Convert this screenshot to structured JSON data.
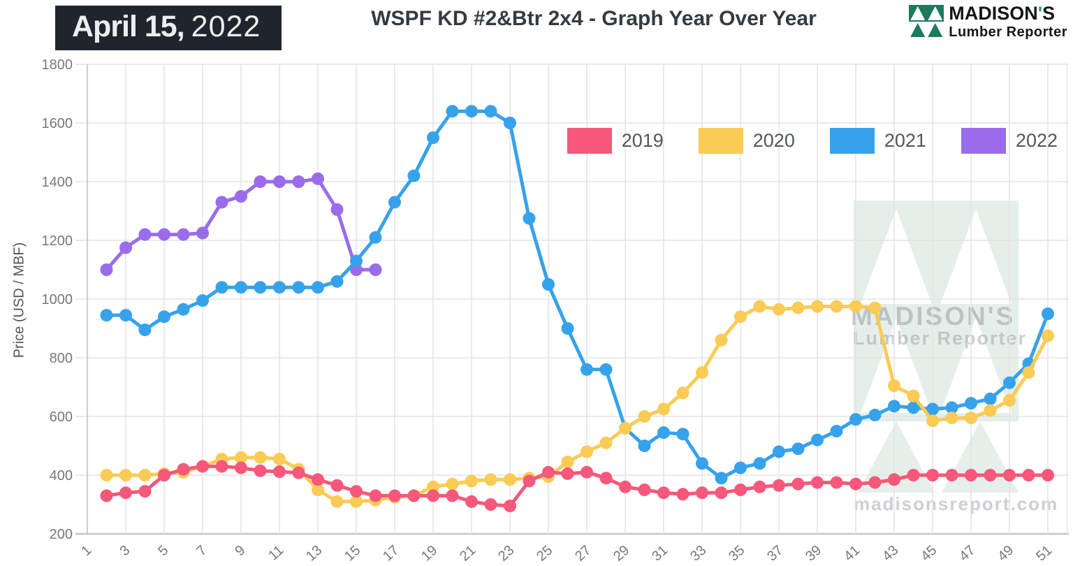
{
  "header": {
    "date_badge": {
      "bold": "April 15,",
      "light": "2022"
    },
    "title": "WSPF KD #2&Btr 2x4 - Graph Year Over Year",
    "logo": {
      "name_pre": "MADISON",
      "apostrophe": "'",
      "name_post": "S",
      "tagline": "Lumber Reporter"
    }
  },
  "watermark": {
    "line1": "MADISON'S",
    "line2": "Lumber Reporter",
    "url": "madisonsreport.com"
  },
  "chart_data": {
    "type": "line",
    "title": "WSPF KD #2&Btr 2x4 - Graph Year Over Year",
    "xlabel": "",
    "ylabel": "Price (USD / MBF)",
    "x_axis": {
      "min": 1,
      "max": 52,
      "ticks": [
        1,
        3,
        5,
        7,
        9,
        11,
        13,
        15,
        17,
        19,
        21,
        23,
        25,
        27,
        29,
        31,
        33,
        35,
        37,
        39,
        41,
        43,
        45,
        47,
        49,
        51
      ]
    },
    "y_axis": {
      "min": 200,
      "max": 1800,
      "ticks": [
        200,
        400,
        600,
        800,
        1000,
        1200,
        1400,
        1600,
        1800
      ]
    },
    "grid": true,
    "legend_position": "top-right-inside",
    "series": [
      {
        "name": "2019",
        "color": "#F5587B",
        "start_week": 2,
        "values": [
          330,
          340,
          345,
          400,
          420,
          430,
          430,
          425,
          415,
          412,
          408,
          385,
          365,
          345,
          330,
          330,
          330,
          330,
          330,
          310,
          300,
          295,
          380,
          410,
          405,
          410,
          390,
          360,
          350,
          340,
          335,
          340,
          340,
          350,
          360,
          365,
          370,
          375,
          375,
          370,
          375,
          385,
          400,
          400,
          400,
          400,
          400,
          400,
          400,
          400
        ]
      },
      {
        "name": "2020",
        "color": "#FACB55",
        "start_week": 2,
        "values": [
          400,
          400,
          400,
          405,
          410,
          430,
          455,
          460,
          460,
          455,
          420,
          350,
          310,
          310,
          315,
          325,
          330,
          360,
          370,
          380,
          385,
          385,
          390,
          395,
          445,
          480,
          510,
          560,
          600,
          625,
          680,
          750,
          860,
          940,
          975,
          965,
          970,
          975,
          975,
          975,
          970,
          705,
          670,
          585,
          595,
          595,
          620,
          655,
          750,
          875
        ]
      },
      {
        "name": "2021",
        "color": "#36A2EB",
        "start_week": 2,
        "values": [
          945,
          945,
          895,
          940,
          965,
          995,
          1040,
          1040,
          1040,
          1040,
          1040,
          1040,
          1060,
          1130,
          1210,
          1330,
          1420,
          1550,
          1640,
          1640,
          1640,
          1600,
          1275,
          1050,
          900,
          760,
          760,
          560,
          500,
          545,
          540,
          440,
          390,
          425,
          440,
          480,
          490,
          520,
          550,
          590,
          605,
          635,
          630,
          625,
          630,
          645,
          660,
          715,
          780,
          950
        ]
      },
      {
        "name": "2022",
        "color": "#9A6CEA",
        "start_week": 2,
        "values": [
          1100,
          1175,
          1220,
          1220,
          1220,
          1225,
          1330,
          1350,
          1400,
          1400,
          1400,
          1410,
          1305,
          1100,
          1100
        ]
      }
    ]
  }
}
